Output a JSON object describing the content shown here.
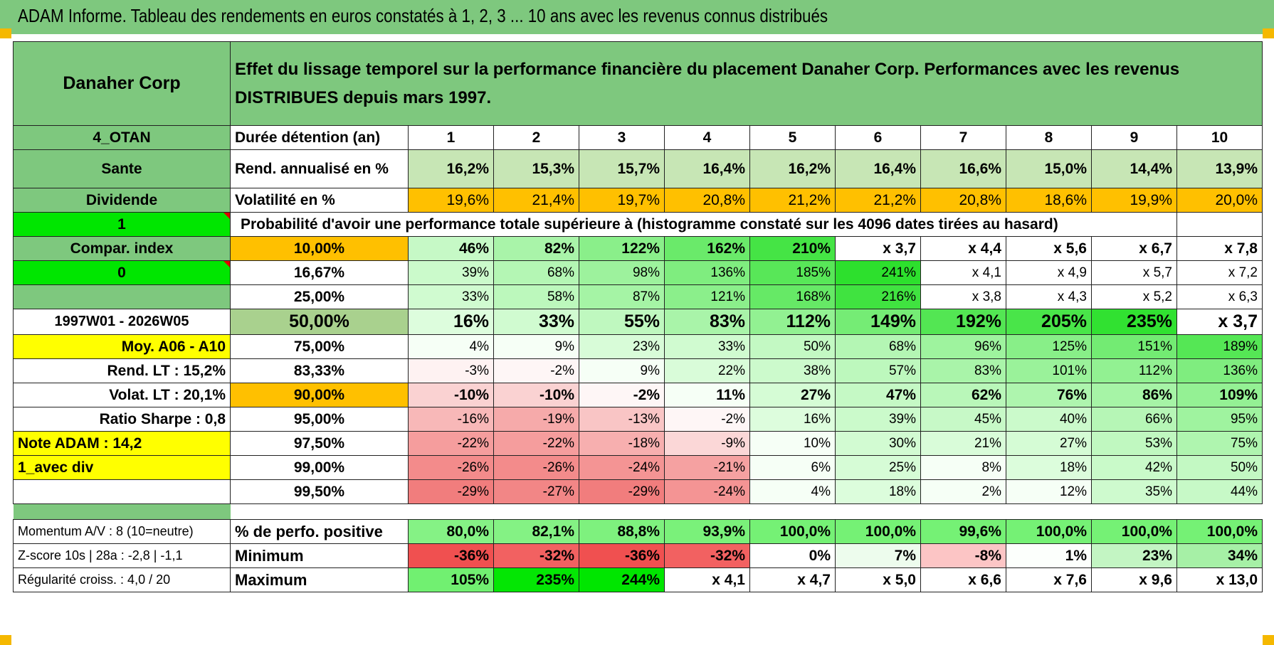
{
  "title": "ADAM Informe. Tableau des rendements en euros constatés à 1, 2, 3 ... 10 ans avec les revenus connus distribués",
  "header": {
    "company": "Danaher Corp",
    "description": "Effet du lissage temporel sur la performance financière du placement Danaher Corp. Performances avec les revenus DISTRIBUES depuis mars 1997."
  },
  "colors": {
    "green": "#7ec87e",
    "bright_green": "#00e600",
    "orange": "#ffc000",
    "yellow": "#ffff00",
    "red_text": "#e00000"
  },
  "left_labels": {
    "otan": "4_OTAN",
    "sector": "Sante",
    "dividend": "Dividende",
    "flag1": "1",
    "compar": "Compar. index",
    "flag0": "0",
    "period": "1997W01 - 2026W05",
    "moy": "Moy. A06 - A10",
    "rend_lt": "Rend. LT :    15,2%",
    "volat_lt": "Volat. LT :    20,1%",
    "sharpe": "Ratio Sharpe :    0,8",
    "note": "Note ADAM : 14,2",
    "avec_div": "1_avec div",
    "momentum": "Momentum A/V : 8 (10=neutre)",
    "zscore": "Z-score 10s | 28a : -2,8 | -1,1",
    "regularite": "Régularité croiss. : 4,0 / 20"
  },
  "years_row": {
    "label": "Durée détention (an)",
    "values": [
      "1",
      "2",
      "3",
      "4",
      "5",
      "6",
      "7",
      "8",
      "9",
      "10"
    ]
  },
  "rend_row": {
    "label": "Rend. annualisé en %",
    "values": [
      "16,2%",
      "15,3%",
      "15,7%",
      "16,4%",
      "16,2%",
      "16,4%",
      "16,6%",
      "15,0%",
      "14,4%",
      "13,9%"
    ]
  },
  "vol_row": {
    "label": "Volatilité en %",
    "values": [
      "19,6%",
      "21,4%",
      "19,7%",
      "20,8%",
      "21,2%",
      "21,2%",
      "20,8%",
      "18,6%",
      "19,9%",
      "20,0%"
    ]
  },
  "proba_title": "Probabilité d'avoir une performance totale supérieure à (histogramme constaté sur les 4096 dates tirées au hasard)",
  "proba_rows": [
    {
      "pct": "10,00%",
      "values": [
        "46%",
        "82%",
        "122%",
        "162%",
        "210%",
        "x 3,7",
        "x 4,4",
        "x 5,6",
        "x 6,7",
        "x 7,8"
      ]
    },
    {
      "pct": "16,67%",
      "values": [
        "39%",
        "68%",
        "98%",
        "136%",
        "185%",
        "241%",
        "x 4,1",
        "x 4,9",
        "x 5,7",
        "x 7,2"
      ]
    },
    {
      "pct": "25,00%",
      "values": [
        "33%",
        "58%",
        "87%",
        "121%",
        "168%",
        "216%",
        "x 3,8",
        "x 4,3",
        "x 5,2",
        "x 6,3"
      ]
    },
    {
      "pct": "50,00%",
      "values": [
        "16%",
        "33%",
        "55%",
        "83%",
        "112%",
        "149%",
        "192%",
        "205%",
        "235%",
        "x 3,7"
      ]
    },
    {
      "pct": "75,00%",
      "values": [
        "4%",
        "9%",
        "23%",
        "33%",
        "50%",
        "68%",
        "96%",
        "125%",
        "151%",
        "189%"
      ]
    },
    {
      "pct": "83,33%",
      "values": [
        "-3%",
        "-2%",
        "9%",
        "22%",
        "38%",
        "57%",
        "83%",
        "101%",
        "112%",
        "136%"
      ]
    },
    {
      "pct": "90,00%",
      "values": [
        "-10%",
        "-10%",
        "-2%",
        "11%",
        "27%",
        "47%",
        "62%",
        "76%",
        "86%",
        "109%"
      ]
    },
    {
      "pct": "95,00%",
      "values": [
        "-16%",
        "-19%",
        "-13%",
        "-2%",
        "16%",
        "39%",
        "45%",
        "40%",
        "66%",
        "95%"
      ]
    },
    {
      "pct": "97,50%",
      "values": [
        "-22%",
        "-22%",
        "-18%",
        "-9%",
        "10%",
        "30%",
        "21%",
        "27%",
        "53%",
        "75%"
      ]
    },
    {
      "pct": "99,00%",
      "values": [
        "-26%",
        "-26%",
        "-24%",
        "-21%",
        "6%",
        "25%",
        "8%",
        "18%",
        "42%",
        "50%"
      ]
    },
    {
      "pct": "99,50%",
      "values": [
        "-29%",
        "-27%",
        "-29%",
        "-24%",
        "4%",
        "18%",
        "2%",
        "12%",
        "35%",
        "44%"
      ]
    }
  ],
  "stats_rows": [
    {
      "label": "% de perfo. positive",
      "values": [
        "80,0%",
        "82,1%",
        "88,8%",
        "93,9%",
        "100,0%",
        "100,0%",
        "99,6%",
        "100,0%",
        "100,0%",
        "100,0%"
      ]
    },
    {
      "label": "Minimum",
      "values": [
        "-36%",
        "-32%",
        "-36%",
        "-32%",
        "0%",
        "7%",
        "-8%",
        "1%",
        "23%",
        "34%"
      ]
    },
    {
      "label": "Maximum",
      "values": [
        "105%",
        "235%",
        "244%",
        "x 4,1",
        "x 4,7",
        "x 5,0",
        "x 6,6",
        "x 7,6",
        "x 9,6",
        "x 13,0"
      ]
    }
  ]
}
